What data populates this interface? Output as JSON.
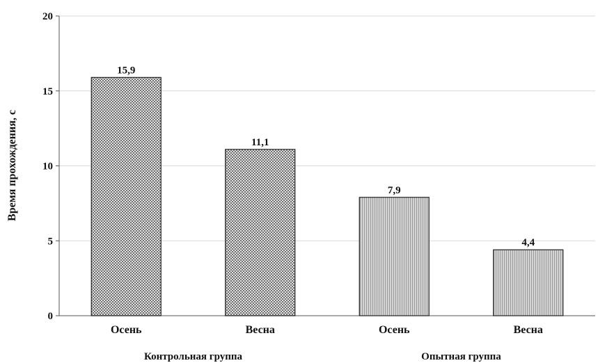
{
  "chart_data": {
    "type": "bar",
    "categories": [
      "Осень",
      "Весна",
      "Осень",
      "Весна"
    ],
    "values": [
      15.9,
      11.1,
      7.9,
      4.4
    ],
    "value_labels": [
      "15,9",
      "11,1",
      "7,9",
      "4,4"
    ],
    "groups": [
      {
        "label": "Контрольная группа",
        "categories": [
          0,
          1
        ],
        "pattern": "crosshatch"
      },
      {
        "label": "Опытная группа",
        "categories": [
          2,
          3
        ],
        "pattern": "vertical-lines"
      }
    ],
    "title": "",
    "xlabel": "",
    "ylabel": "Время прохождения, с",
    "ylim": [
      0,
      20
    ],
    "yticks": [
      0,
      5,
      10,
      15,
      20
    ],
    "grid": true,
    "colors": {
      "bar_fill": "#d0d0d0",
      "bar_stroke": "#222222",
      "grid": "#d9d9d9",
      "axis": "#555555"
    }
  }
}
